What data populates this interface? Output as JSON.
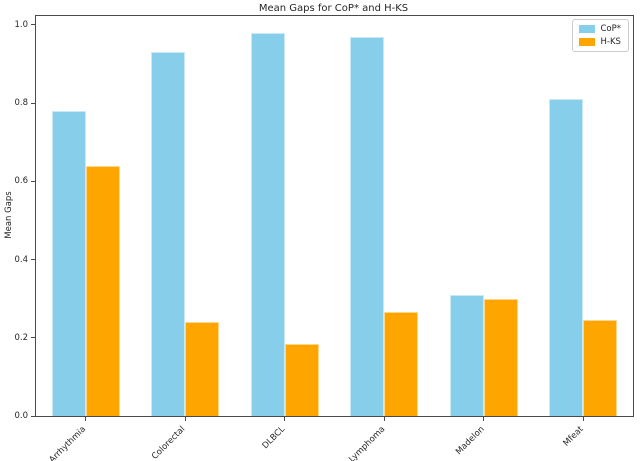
{
  "chart_data": {
    "type": "bar",
    "title": "Mean Gaps for CoP* and H-KS",
    "xlabel": "",
    "ylabel": "Mean Gaps",
    "categories": [
      "Arrhythmia",
      "Colorectal",
      "DLBCL",
      "Lymphoma",
      "Madelon",
      "Mfeat"
    ],
    "series": [
      {
        "name": "CoP*",
        "color": "#87CEEB",
        "values": [
          0.78,
          0.93,
          0.98,
          0.97,
          0.31,
          0.81
        ]
      },
      {
        "name": "H-KS",
        "color": "#FFA500",
        "values": [
          0.64,
          0.24,
          0.185,
          0.265,
          0.3,
          0.245
        ]
      }
    ],
    "yticks": [
      0.0,
      0.2,
      0.4,
      0.6,
      0.8,
      1.0
    ],
    "ytick_labels": [
      "0.0",
      "0.2",
      "0.4",
      "0.6",
      "0.8",
      "1.0"
    ],
    "ylim": [
      0,
      1.023
    ],
    "grid": false,
    "legend_position": "upper right",
    "spine_color": "#4a4a4a",
    "background_color": "#ffffff"
  }
}
